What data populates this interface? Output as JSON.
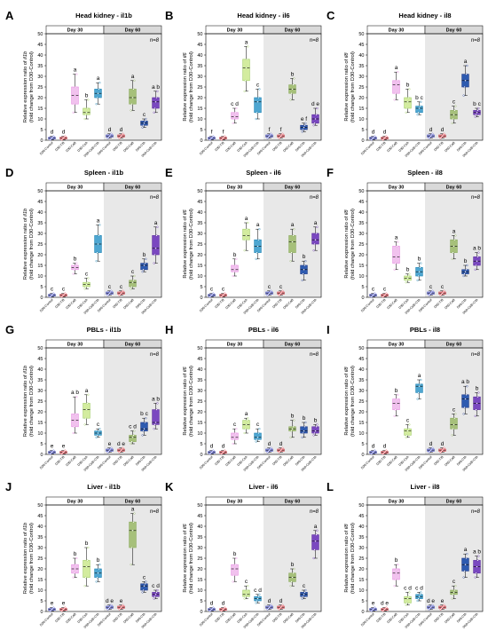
{
  "figure": {
    "ylabel_line1_prefix": "Relative expression ratio of ",
    "ylabel_line2": "(fold change from D30-Control)",
    "n_label": "n=8",
    "day_labels": [
      "Day 30",
      "Day 60"
    ],
    "categories": [
      "D30-Control",
      "D30-T/B",
      "D30-CaB",
      "D30-CsA",
      "D30-CaB+CfA",
      "D60-Control",
      "D60-T/B",
      "D60-CaB",
      "D60-CfA",
      "D60-CaB+CfA"
    ],
    "colors": {
      "control": "#4a52c9",
      "tb": "#e0454f",
      "cab_light": "#e78ee1",
      "csa": "#a3cf68",
      "cab_cfa": "#1f84b4",
      "olive": "#8aaa5a",
      "navy": "#1e3a8a",
      "purple": "#5a2b9e",
      "shade": "#e8e8e8"
    }
  },
  "chart_data": [
    {
      "panel": "A",
      "title": "Head kidney - il1b",
      "gene": "il1b",
      "type": "box",
      "ylim": [
        0,
        50
      ],
      "yticks": [
        0,
        5,
        10,
        15,
        20,
        25,
        30,
        35,
        40,
        45,
        50
      ],
      "medians": [
        1,
        1,
        21,
        13,
        22,
        2,
        2,
        20,
        8,
        18
      ],
      "q1": [
        0.6,
        0.6,
        17,
        12,
        20,
        1.5,
        1.5,
        17,
        7,
        15
      ],
      "q3": [
        1.4,
        1.4,
        25,
        15,
        24,
        2.5,
        2.5,
        24,
        9,
        20
      ],
      "lo": [
        0.3,
        0.3,
        13,
        10,
        17,
        1,
        1,
        14,
        6,
        13
      ],
      "hi": [
        1.8,
        1.8,
        31,
        19,
        27,
        3,
        3,
        28,
        10,
        23
      ],
      "letters": [
        "d",
        "d",
        "a",
        "b",
        "a",
        "d",
        "d",
        "a",
        "c",
        "a b"
      ]
    },
    {
      "panel": "B",
      "title": "Head kidney - il6",
      "gene": "il6",
      "type": "box",
      "ylim": [
        0,
        50
      ],
      "yticks": [
        0,
        5,
        10,
        15,
        20,
        25,
        30,
        35,
        40,
        45,
        50
      ],
      "medians": [
        1,
        1,
        11,
        34,
        18,
        2,
        2,
        24,
        6,
        10
      ],
      "q1": [
        0.6,
        0.6,
        10,
        28,
        13,
        1.5,
        1.5,
        22,
        5,
        8
      ],
      "q3": [
        1.4,
        1.4,
        13,
        38,
        20,
        2.5,
        2.5,
        26,
        7,
        12
      ],
      "lo": [
        0.3,
        0.3,
        8,
        23,
        10,
        1,
        1,
        19,
        4,
        7
      ],
      "hi": [
        1.8,
        1.8,
        15,
        44,
        24,
        3,
        3,
        29,
        8,
        15
      ],
      "letters": [
        "f",
        "f",
        "c d",
        "a",
        "c",
        "f",
        "f",
        "b",
        "e f",
        "d e"
      ]
    },
    {
      "panel": "C",
      "title": "Head kidney - il8",
      "gene": "il8",
      "type": "box",
      "ylim": [
        0,
        50
      ],
      "yticks": [
        0,
        5,
        10,
        15,
        20,
        25,
        30,
        35,
        40,
        45,
        50
      ],
      "medians": [
        1,
        1,
        26,
        18,
        15,
        2,
        2,
        12,
        28,
        13
      ],
      "q1": [
        0.6,
        0.6,
        22,
        15,
        13,
        1.5,
        1.5,
        10,
        25,
        12
      ],
      "q3": [
        1.4,
        1.4,
        28,
        20,
        16,
        2.5,
        2.5,
        14,
        31,
        14
      ],
      "lo": [
        0.3,
        0.3,
        19,
        13,
        12,
        1,
        1,
        8,
        21,
        11
      ],
      "hi": [
        1.8,
        1.8,
        32,
        24,
        18,
        3,
        3,
        16,
        35,
        15
      ],
      "letters": [
        "d",
        "d",
        "a",
        "b",
        "b c",
        "d",
        "d",
        "c",
        "a",
        "b c"
      ]
    },
    {
      "panel": "D",
      "title": "Spleen - il1b",
      "gene": "il1b",
      "type": "box",
      "ylim": [
        0,
        50
      ],
      "yticks": [
        0,
        5,
        10,
        15,
        20,
        25,
        30,
        35,
        40,
        45,
        50
      ],
      "medians": [
        1,
        1,
        14,
        6,
        25,
        2,
        2,
        7,
        15,
        23
      ],
      "q1": [
        0.6,
        0.6,
        13,
        5,
        21,
        1.5,
        1.5,
        5,
        13,
        20
      ],
      "q3": [
        1.4,
        1.4,
        15,
        7,
        29,
        2.5,
        2.5,
        8,
        16,
        29
      ],
      "lo": [
        0.3,
        0.3,
        11,
        4,
        17,
        1,
        1,
        4,
        12,
        16
      ],
      "hi": [
        1.8,
        1.8,
        16,
        9,
        34,
        3,
        3,
        10,
        18,
        33
      ],
      "letters": [
        "c",
        "c",
        "b",
        "c",
        "a",
        "c",
        "c",
        "c",
        "b",
        "a"
      ]
    },
    {
      "panel": "E",
      "title": "Spleen - il6",
      "gene": "il6",
      "type": "box",
      "ylim": [
        0,
        50
      ],
      "yticks": [
        0,
        5,
        10,
        15,
        20,
        25,
        30,
        35,
        40,
        45,
        50
      ],
      "medians": [
        1,
        1,
        13,
        29,
        24,
        2,
        2,
        26,
        13,
        27
      ],
      "q1": [
        0.6,
        0.6,
        12,
        27,
        21,
        1.5,
        1.5,
        21,
        11,
        25
      ],
      "q3": [
        1.4,
        1.4,
        15,
        32,
        27,
        2.5,
        2.5,
        29,
        15,
        30
      ],
      "lo": [
        0.3,
        0.3,
        10,
        22,
        18,
        1,
        1,
        17,
        8,
        22
      ],
      "hi": [
        1.8,
        1.8,
        18,
        35,
        32,
        3,
        3,
        32,
        17,
        33
      ],
      "letters": [
        "c",
        "c",
        "b",
        "a",
        "a",
        "c",
        "c",
        "a",
        "b",
        "a"
      ]
    },
    {
      "panel": "F",
      "title": "Spleen - il8",
      "gene": "il8",
      "type": "box",
      "ylim": [
        0,
        50
      ],
      "yticks": [
        0,
        5,
        10,
        15,
        20,
        25,
        30,
        35,
        40,
        45,
        50
      ],
      "medians": [
        1,
        1,
        19,
        9,
        12,
        2,
        2,
        24,
        12,
        17
      ],
      "q1": [
        0.6,
        0.6,
        16,
        8,
        10,
        1.5,
        1.5,
        21,
        11,
        15
      ],
      "q3": [
        1.4,
        1.4,
        24,
        10,
        14,
        2.5,
        2.5,
        27,
        13,
        19
      ],
      "lo": [
        0.3,
        0.3,
        13,
        7,
        8,
        1,
        1,
        18,
        10,
        13
      ],
      "hi": [
        1.8,
        1.8,
        26,
        11,
        16,
        3,
        3,
        29,
        15,
        21
      ],
      "letters": [
        "c",
        "c",
        "a",
        "b",
        "b",
        "c",
        "c",
        "a",
        "b",
        "a b"
      ]
    },
    {
      "panel": "G",
      "title": "PBLs - il1b",
      "gene": "il1b",
      "type": "box",
      "ylim": [
        0,
        50
      ],
      "yticks": [
        0,
        5,
        10,
        15,
        20,
        25,
        30,
        35,
        40,
        45,
        50
      ],
      "medians": [
        1,
        1,
        16,
        21,
        10,
        2,
        2,
        8,
        12,
        15
      ],
      "q1": [
        0.6,
        0.6,
        13,
        17,
        9,
        1.5,
        1.5,
        6,
        11,
        14
      ],
      "q3": [
        1.4,
        1.4,
        19,
        24,
        11,
        2.5,
        2.5,
        9,
        15,
        21
      ],
      "lo": [
        0.3,
        0.3,
        10,
        14,
        8,
        1,
        1,
        5,
        9,
        12
      ],
      "hi": [
        1.8,
        1.8,
        27,
        28,
        12,
        3,
        3,
        11,
        17,
        24
      ],
      "letters": [
        "e",
        "e",
        "a b",
        "a",
        "c",
        "e",
        "d e",
        "c d",
        "b c",
        "a b"
      ]
    },
    {
      "panel": "H",
      "title": "PBLs - il6",
      "gene": "il6",
      "type": "box",
      "ylim": [
        0,
        50
      ],
      "yticks": [
        0,
        5,
        10,
        15,
        20,
        25,
        30,
        35,
        40,
        45,
        50
      ],
      "medians": [
        1,
        1,
        8,
        14,
        8,
        2,
        2,
        12,
        11,
        11
      ],
      "q1": [
        0.6,
        0.6,
        7,
        12,
        7,
        1.5,
        1.5,
        11,
        10,
        10
      ],
      "q3": [
        1.4,
        1.4,
        10,
        16,
        10,
        2.5,
        2.5,
        13,
        13,
        13
      ],
      "lo": [
        0.3,
        0.3,
        5,
        10,
        6,
        1,
        1,
        8,
        8,
        9
      ],
      "hi": [
        1.8,
        1.8,
        12,
        17,
        12,
        3,
        3,
        16,
        15,
        14
      ],
      "letters": [
        "d",
        "d",
        "c",
        "a",
        "c",
        "d",
        "d",
        "b",
        "b",
        "b"
      ]
    },
    {
      "panel": "I",
      "title": "PBLs - il8",
      "gene": "il8",
      "type": "box",
      "ylim": [
        0,
        50
      ],
      "yticks": [
        0,
        5,
        10,
        15,
        20,
        25,
        30,
        35,
        40,
        45,
        50
      ],
      "medians": [
        1,
        1,
        24,
        11,
        32,
        2,
        2,
        14,
        26,
        24
      ],
      "q1": [
        0.6,
        0.6,
        21,
        9,
        29,
        1.5,
        1.5,
        12,
        22,
        21
      ],
      "q3": [
        1.4,
        1.4,
        26,
        12,
        33,
        2.5,
        2.5,
        17,
        28,
        27
      ],
      "lo": [
        0.3,
        0.3,
        18,
        8,
        26,
        1,
        1,
        9,
        19,
        18
      ],
      "hi": [
        1.8,
        1.8,
        28,
        14,
        35,
        3,
        3,
        19,
        32,
        29
      ],
      "letters": [
        "d",
        "d",
        "b",
        "c",
        "a",
        "d",
        "d",
        "c",
        "a b",
        "b"
      ]
    },
    {
      "panel": "J",
      "title": "Liver - il1b",
      "gene": "il1b",
      "type": "box",
      "ylim": [
        0,
        50
      ],
      "yticks": [
        0,
        5,
        10,
        15,
        20,
        25,
        30,
        35,
        40,
        45,
        50
      ],
      "medians": [
        1,
        1,
        20,
        21,
        18,
        2,
        2,
        38,
        12,
        8
      ],
      "q1": [
        0.6,
        0.6,
        18,
        16,
        16,
        1.5,
        1.5,
        30,
        10,
        7
      ],
      "q3": [
        1.4,
        1.4,
        22,
        24,
        20,
        2.5,
        2.5,
        42,
        13,
        9
      ],
      "lo": [
        0.3,
        0.3,
        16,
        12,
        14,
        1,
        1,
        22,
        9,
        6
      ],
      "hi": [
        1.8,
        1.8,
        25,
        30,
        22,
        3,
        3,
        46,
        14,
        10
      ],
      "letters": [
        "e",
        "e",
        "b",
        "b",
        "b",
        "d e",
        "e",
        "a",
        "c",
        "c d"
      ]
    },
    {
      "panel": "K",
      "title": "Liver - il6",
      "gene": "il6",
      "type": "box",
      "ylim": [
        0,
        50
      ],
      "yticks": [
        0,
        5,
        10,
        15,
        20,
        25,
        30,
        35,
        40,
        45,
        50
      ],
      "medians": [
        1,
        1,
        20,
        8,
        6,
        2,
        2,
        16,
        8,
        33
      ],
      "q1": [
        0.6,
        0.6,
        17,
        7,
        5,
        1.5,
        1.5,
        14,
        7,
        29
      ],
      "q3": [
        1.4,
        1.4,
        22,
        10,
        7,
        2.5,
        2.5,
        18,
        9,
        36
      ],
      "lo": [
        0.3,
        0.3,
        14,
        6,
        4,
        1,
        1,
        12,
        6,
        25
      ],
      "hi": [
        1.8,
        1.8,
        25,
        12,
        8,
        3,
        3,
        20,
        10,
        38
      ],
      "letters": [
        "d",
        "d",
        "b",
        "c",
        "c d",
        "d",
        "d",
        "b",
        "c",
        "a"
      ]
    },
    {
      "panel": "L",
      "title": "Liver - il8",
      "gene": "il8",
      "type": "box",
      "ylim": [
        0,
        50
      ],
      "yticks": [
        0,
        5,
        10,
        15,
        20,
        25,
        30,
        35,
        40,
        45,
        50
      ],
      "medians": [
        1,
        1,
        18,
        6,
        7,
        2,
        2,
        9,
        22,
        21
      ],
      "q1": [
        0.6,
        0.6,
        15,
        4,
        6,
        1.5,
        1.5,
        8,
        19,
        18
      ],
      "q3": [
        1.4,
        1.4,
        20,
        7,
        8,
        2.5,
        2.5,
        10,
        25,
        24
      ],
      "lo": [
        0.3,
        0.3,
        12,
        3,
        5,
        1,
        1,
        6,
        16,
        16
      ],
      "hi": [
        1.8,
        1.8,
        22,
        9,
        9,
        3,
        3,
        12,
        27,
        26
      ],
      "letters": [
        "e",
        "d e",
        "b",
        "c d",
        "c d",
        "d e",
        "e",
        "c",
        "a",
        "a b"
      ]
    }
  ]
}
